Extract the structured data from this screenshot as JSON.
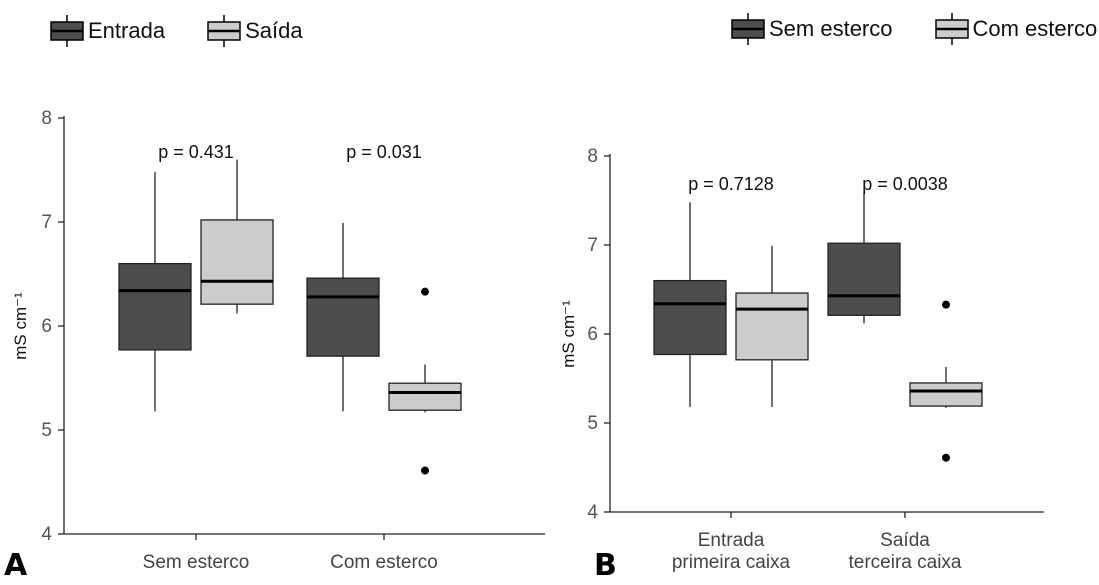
{
  "chart_data": [
    {
      "panel_label": "A",
      "type": "boxplot",
      "ylabel": "mS cm⁻¹",
      "ylim": [
        4,
        8
      ],
      "yticks": [
        4,
        5,
        6,
        7,
        8
      ],
      "categories": [
        "Sem esterco",
        "Com esterco"
      ],
      "series": [
        {
          "name": "Entrada",
          "color": "#4d4d4d"
        },
        {
          "name": "Saída",
          "color": "#cccccc"
        }
      ],
      "boxes": [
        {
          "category": "Sem esterco",
          "series": "Entrada",
          "whisker_low": 5.18,
          "q1": 5.77,
          "median": 6.34,
          "q3": 6.6,
          "whisker_high": 7.48,
          "outliers": []
        },
        {
          "category": "Sem esterco",
          "series": "Saída",
          "whisker_low": 6.12,
          "q1": 6.21,
          "median": 6.43,
          "q3": 7.02,
          "whisker_high": 7.6,
          "outliers": []
        },
        {
          "category": "Com esterco",
          "series": "Entrada",
          "whisker_low": 5.18,
          "q1": 5.71,
          "median": 6.28,
          "q3": 6.46,
          "whisker_high": 6.99,
          "outliers": []
        },
        {
          "category": "Com esterco",
          "series": "Saída",
          "whisker_low": 5.17,
          "q1": 5.19,
          "median": 5.36,
          "q3": 5.45,
          "whisker_high": 5.63,
          "outliers": [
            6.33,
            4.61
          ]
        }
      ],
      "annotations": [
        "p = 0.431",
        "p = 0.031"
      ],
      "legend_position": "top-left"
    },
    {
      "panel_label": "B",
      "type": "boxplot",
      "ylabel": "mS cm⁻¹",
      "ylim": [
        4,
        8
      ],
      "yticks": [
        4,
        5,
        6,
        7,
        8
      ],
      "categories": [
        [
          "Entrada",
          "primeira caixa"
        ],
        [
          "Saída",
          "terceira caixa"
        ]
      ],
      "series": [
        {
          "name": "Sem esterco",
          "color": "#4d4d4d"
        },
        {
          "name": "Com esterco",
          "color": "#cccccc"
        }
      ],
      "boxes": [
        {
          "category": "Entrada primeira caixa",
          "series": "Sem esterco",
          "whisker_low": 5.18,
          "q1": 5.77,
          "median": 6.34,
          "q3": 6.6,
          "whisker_high": 7.48,
          "outliers": []
        },
        {
          "category": "Entrada primeira caixa",
          "series": "Com esterco",
          "whisker_low": 5.18,
          "q1": 5.71,
          "median": 6.28,
          "q3": 6.46,
          "whisker_high": 6.99,
          "outliers": []
        },
        {
          "category": "Saída terceira caixa",
          "series": "Sem esterco",
          "whisker_low": 6.12,
          "q1": 6.21,
          "median": 6.43,
          "q3": 7.02,
          "whisker_high": 7.6,
          "outliers": []
        },
        {
          "category": "Saída terceira caixa",
          "series": "Com esterco",
          "whisker_low": 5.17,
          "q1": 5.19,
          "median": 5.36,
          "q3": 5.45,
          "whisker_high": 5.63,
          "outliers": [
            6.33,
            4.61
          ]
        }
      ],
      "annotations": [
        "p = 0.7128",
        "p = 0.0038"
      ],
      "legend_position": "top-right"
    }
  ]
}
